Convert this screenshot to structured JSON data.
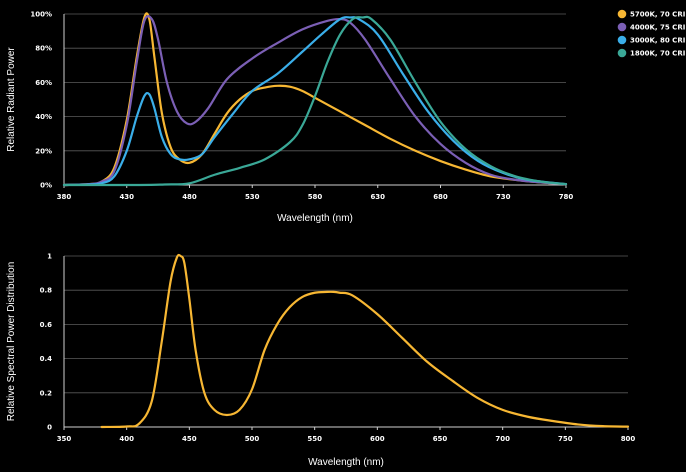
{
  "chart_data": [
    {
      "type": "line",
      "title": "",
      "xlabel": "Wavelength (nm)",
      "ylabel": "Relative Radiant Power",
      "xlim": [
        380,
        780
      ],
      "ylim": [
        0,
        100
      ],
      "x_ticks": [
        "380",
        "430",
        "480",
        "530",
        "580",
        "630",
        "680",
        "730",
        "780"
      ],
      "y_ticks": [
        "0%",
        "20%",
        "40%",
        "60%",
        "80%",
        "100%"
      ],
      "grid": true,
      "legend_position": "right",
      "series": [
        {
          "name": "5700K, 70 CRI",
          "color": "#f7b733",
          "x": [
            380,
            400,
            410,
            420,
            430,
            438,
            444,
            448,
            452,
            458,
            465,
            472,
            480,
            490,
            500,
            510,
            520,
            530,
            540,
            550,
            560,
            570,
            580,
            600,
            620,
            640,
            660,
            680,
            700,
            720,
            740,
            760,
            780
          ],
          "y": [
            0,
            0.5,
            2,
            10,
            38,
            75,
            98,
            97,
            75,
            42,
            22,
            15,
            13,
            18,
            30,
            42,
            50,
            55,
            57,
            58,
            57.5,
            55,
            51,
            43,
            35,
            27,
            20,
            14,
            9,
            5,
            3,
            1.5,
            0.5
          ]
        },
        {
          "name": "4000K, 75 CRI",
          "color": "#7b5fb5",
          "x": [
            380,
            400,
            410,
            420,
            430,
            438,
            444,
            450,
            455,
            462,
            470,
            478,
            485,
            495,
            510,
            530,
            550,
            570,
            590,
            600,
            608,
            620,
            640,
            660,
            680,
            700,
            720,
            740,
            760,
            780
          ],
          "y": [
            0,
            0.5,
            2,
            8,
            35,
            72,
            96,
            97,
            85,
            60,
            43,
            36,
            37,
            45,
            62,
            74,
            83,
            91,
            96,
            97,
            95,
            85,
            62,
            40,
            24,
            13,
            6,
            3,
            1.5,
            0.5
          ]
        },
        {
          "name": "3000K, 80 CRI",
          "color": "#3aaee9",
          "x": [
            380,
            400,
            410,
            420,
            430,
            438,
            444,
            448,
            452,
            458,
            465,
            472,
            480,
            490,
            500,
            515,
            530,
            550,
            570,
            585,
            600,
            608,
            615,
            630,
            650,
            670,
            690,
            710,
            730,
            750,
            780
          ],
          "y": [
            0,
            0.3,
            1,
            5,
            20,
            40,
            52,
            53,
            45,
            28,
            18,
            15,
            15,
            18,
            28,
            42,
            55,
            65,
            78,
            88,
            97,
            98,
            97,
            88,
            65,
            43,
            26,
            14,
            7,
            3,
            0.5
          ]
        },
        {
          "name": "1800K, 70 CRI",
          "color": "#3aa897",
          "x": [
            380,
            440,
            460,
            480,
            500,
            520,
            540,
            560,
            570,
            580,
            590,
            600,
            610,
            618,
            625,
            640,
            660,
            680,
            700,
            720,
            740,
            760,
            780
          ],
          "y": [
            0,
            0,
            0.3,
            1,
            6,
            10,
            15,
            25,
            35,
            52,
            72,
            88,
            97,
            98,
            97,
            85,
            60,
            37,
            21,
            11,
            5,
            2,
            0.5
          ]
        }
      ]
    },
    {
      "type": "line",
      "title": "",
      "xlabel": "Wavelength (nm)",
      "ylabel": "Relative Spectral Power Distribution",
      "xlim": [
        350,
        800
      ],
      "ylim": [
        0,
        1
      ],
      "x_ticks": [
        "350",
        "400",
        "450",
        "500",
        "550",
        "600",
        "650",
        "700",
        "750",
        "800"
      ],
      "y_ticks": [
        "0",
        "0.2",
        "0.4",
        "0.6",
        "0.8",
        "1"
      ],
      "grid": true,
      "series": [
        {
          "color": "#f7b733",
          "x": [
            380,
            400,
            410,
            420,
            428,
            435,
            440,
            443,
            446,
            450,
            455,
            462,
            470,
            480,
            490,
            500,
            510,
            520,
            530,
            540,
            550,
            560,
            565,
            570,
            580,
            600,
            620,
            640,
            660,
            680,
            700,
            720,
            740,
            760,
            780,
            800
          ],
          "y": [
            0,
            0.003,
            0.02,
            0.15,
            0.5,
            0.85,
            0.99,
            1.0,
            0.96,
            0.75,
            0.45,
            0.2,
            0.1,
            0.07,
            0.1,
            0.22,
            0.45,
            0.6,
            0.7,
            0.76,
            0.785,
            0.79,
            0.79,
            0.785,
            0.77,
            0.66,
            0.52,
            0.38,
            0.27,
            0.17,
            0.1,
            0.06,
            0.035,
            0.015,
            0.005,
            0.002
          ]
        }
      ]
    }
  ]
}
